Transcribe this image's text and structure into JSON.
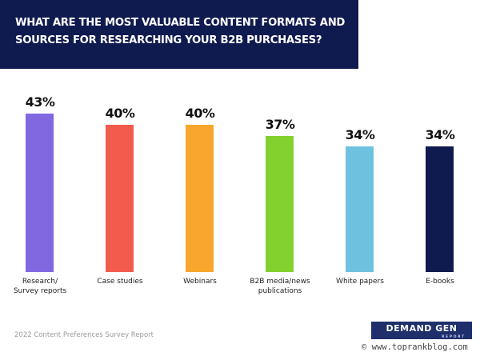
{
  "header": {
    "title": "What are the most valuable content formats and sources for researching your B2B purchases?"
  },
  "chart_data": {
    "type": "bar",
    "title": "What are the most valuable content formats and sources for researching your B2B purchases?",
    "categories": [
      "Research/ Survey reports",
      "Case studies",
      "Webinars",
      "B2B media/news publications",
      "White papers",
      "E-books"
    ],
    "values": [
      43,
      40,
      40,
      37,
      34,
      34
    ],
    "value_labels": [
      "43%",
      "40%",
      "40%",
      "37%",
      "34%",
      "34%"
    ],
    "colors": [
      "#8167e0",
      "#f25c4c",
      "#f8a62e",
      "#83d12e",
      "#6fc2df",
      "#0f1a4f"
    ],
    "xlabel": "",
    "ylabel": "",
    "unit": "%",
    "grid": false,
    "legend": "none"
  },
  "bars": [
    {
      "label": "Research/\nSurvey reports",
      "value": "43%",
      "color": "#8167e0"
    },
    {
      "label": "Case studies",
      "value": "40%",
      "color": "#f25c4c"
    },
    {
      "label": "Webinars",
      "value": "40%",
      "color": "#f8a62e"
    },
    {
      "label": "B2B media/news\npublications",
      "value": "37%",
      "color": "#83d12e"
    },
    {
      "label": "White papers",
      "value": "34%",
      "color": "#6fc2df"
    },
    {
      "label": "E-books",
      "value": "34%",
      "color": "#0f1a4f"
    }
  ],
  "footer": {
    "source": "2022 Content Preferences Survey Report",
    "logo_text": "DEMAND GEN",
    "logo_sub": "REPORT",
    "watermark": "© www.toprankblog.com"
  }
}
